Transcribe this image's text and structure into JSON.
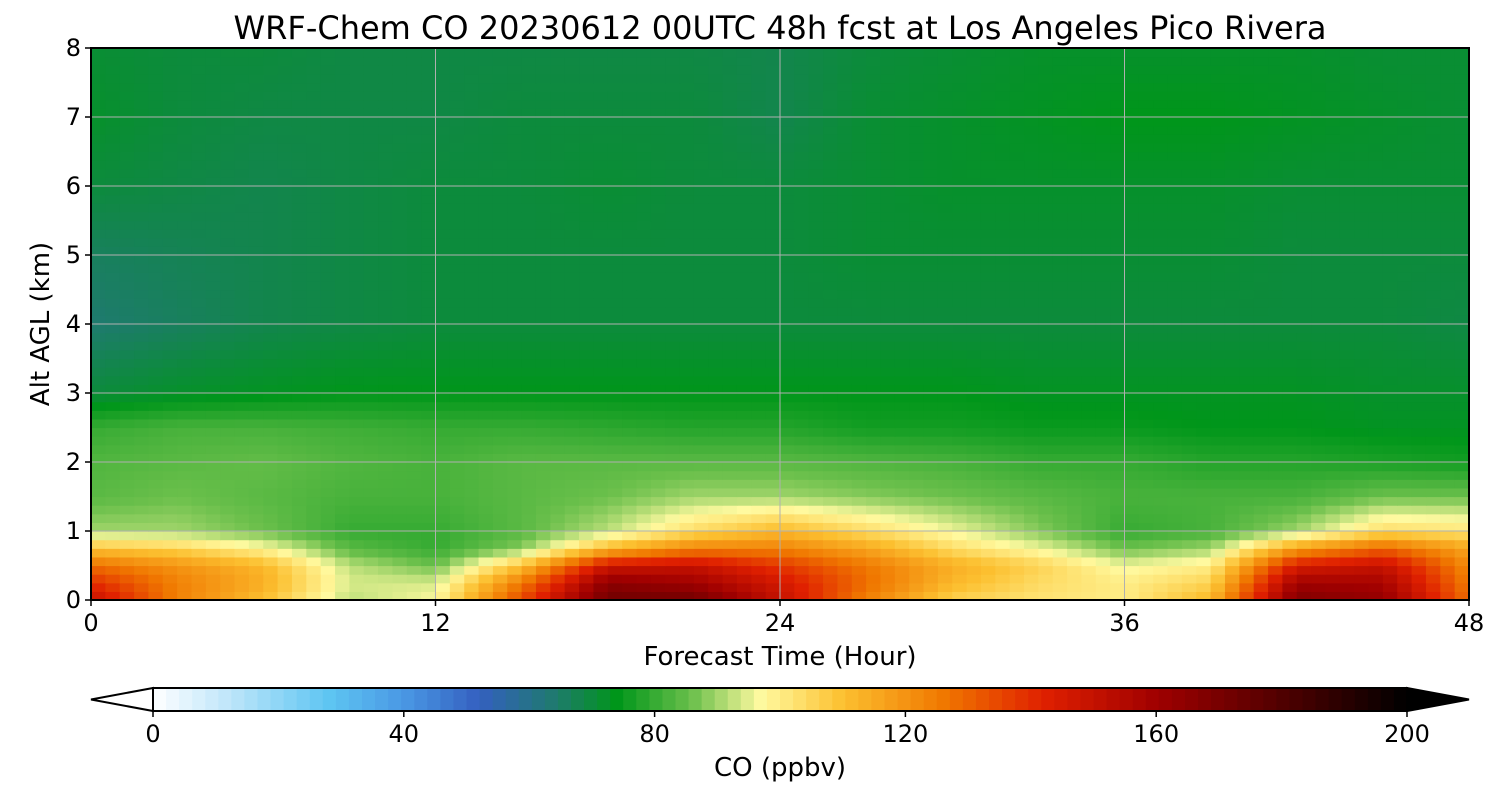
{
  "chart_data": {
    "type": "heatmap",
    "title": "WRF-Chem CO  20230612 00UTC 48h fcst at Los Angeles Pico Rivera",
    "xlabel": "Forecast Time (Hour)",
    "ylabel": "Alt AGL (km)",
    "xlim": [
      0,
      48
    ],
    "ylim": [
      0,
      8
    ],
    "xticks": [
      0,
      12,
      24,
      36,
      48
    ],
    "yticks": [
      0,
      1,
      2,
      3,
      4,
      5,
      6,
      7,
      8
    ],
    "grid": true,
    "colorbar": {
      "label": "CO  (ppbv)",
      "range": [
        0,
        200
      ],
      "ticks": [
        0,
        40,
        80,
        120,
        160,
        200
      ],
      "extend": "both",
      "colors": [
        {
          "v": 0,
          "c": "#ffffff"
        },
        {
          "v": 12,
          "c": "#bfe6fa"
        },
        {
          "v": 28,
          "c": "#5ec5f2"
        },
        {
          "v": 40,
          "c": "#4a98e4"
        },
        {
          "v": 52,
          "c": "#3460c0"
        },
        {
          "v": 64,
          "c": "#1f7a6f"
        },
        {
          "v": 74,
          "c": "#00961a"
        },
        {
          "v": 86,
          "c": "#6cc04c"
        },
        {
          "v": 97,
          "c": "#fffaa0"
        },
        {
          "v": 110,
          "c": "#fcc030"
        },
        {
          "v": 126,
          "c": "#f07800"
        },
        {
          "v": 142,
          "c": "#e02000"
        },
        {
          "v": 160,
          "c": "#a00000"
        },
        {
          "v": 180,
          "c": "#500000"
        },
        {
          "v": 200,
          "c": "#000000"
        }
      ]
    },
    "field": {
      "x": [
        0,
        3,
        6,
        9,
        12,
        15,
        18,
        21,
        24,
        27,
        30,
        33,
        36,
        39,
        42,
        45,
        48
      ],
      "y": [
        0,
        0.25,
        0.5,
        0.75,
        1,
        1.5,
        2,
        2.5,
        3,
        4,
        5,
        6,
        7,
        8
      ],
      "values": [
        [
          150,
          124,
          110,
          92,
          97,
          135,
          172,
          172,
          150,
          124,
          106,
          102,
          100,
          112,
          168,
          163,
          128
        ],
        [
          140,
          124,
          114,
          94,
          94,
          126,
          165,
          160,
          146,
          128,
          112,
          104,
          100,
          106,
          160,
          158,
          125
        ],
        [
          128,
          120,
          112,
          92,
          86,
          110,
          148,
          150,
          138,
          126,
          114,
          106,
          96,
          100,
          145,
          150,
          122
        ],
        [
          110,
          106,
          98,
          84,
          80,
          88,
          112,
          124,
          124,
          116,
          104,
          96,
          86,
          90,
          118,
          130,
          116
        ],
        [
          90,
          90,
          86,
          80,
          80,
          84,
          92,
          104,
          112,
          104,
          96,
          88,
          80,
          82,
          90,
          104,
          102
        ],
        [
          84,
          86,
          84,
          82,
          82,
          84,
          86,
          90,
          90,
          88,
          86,
          84,
          82,
          82,
          82,
          86,
          86
        ],
        [
          83,
          84,
          85,
          83,
          82,
          84,
          84,
          84,
          84,
          83,
          82,
          80,
          80,
          78,
          78,
          77,
          76
        ],
        [
          80,
          82,
          82,
          81,
          80,
          80,
          79,
          78,
          78,
          76,
          76,
          75,
          75,
          74,
          74,
          73,
          73
        ],
        [
          70,
          72,
          73,
          74,
          74,
          74,
          74,
          74,
          74,
          74,
          74,
          73,
          73,
          73,
          73,
          72,
          72
        ],
        [
          64,
          66,
          68,
          69,
          70,
          70,
          70,
          70,
          70,
          70,
          70,
          70,
          70,
          70,
          70,
          70,
          69
        ],
        [
          66,
          67,
          68,
          69,
          70,
          70,
          70,
          70,
          70,
          71,
          71,
          71,
          71,
          71,
          70,
          70,
          70
        ],
        [
          70,
          69,
          68,
          69,
          70,
          70,
          71,
          70,
          70,
          71,
          72,
          72,
          72,
          72,
          71,
          71,
          71
        ],
        [
          72,
          70,
          69,
          69,
          69,
          70,
          70,
          70,
          68,
          71,
          72,
          73,
          74,
          74,
          73,
          72,
          71
        ],
        [
          71,
          70,
          70,
          69,
          69,
          69,
          69,
          69,
          68,
          70,
          71,
          72,
          72,
          72,
          72,
          71,
          71
        ]
      ]
    }
  }
}
